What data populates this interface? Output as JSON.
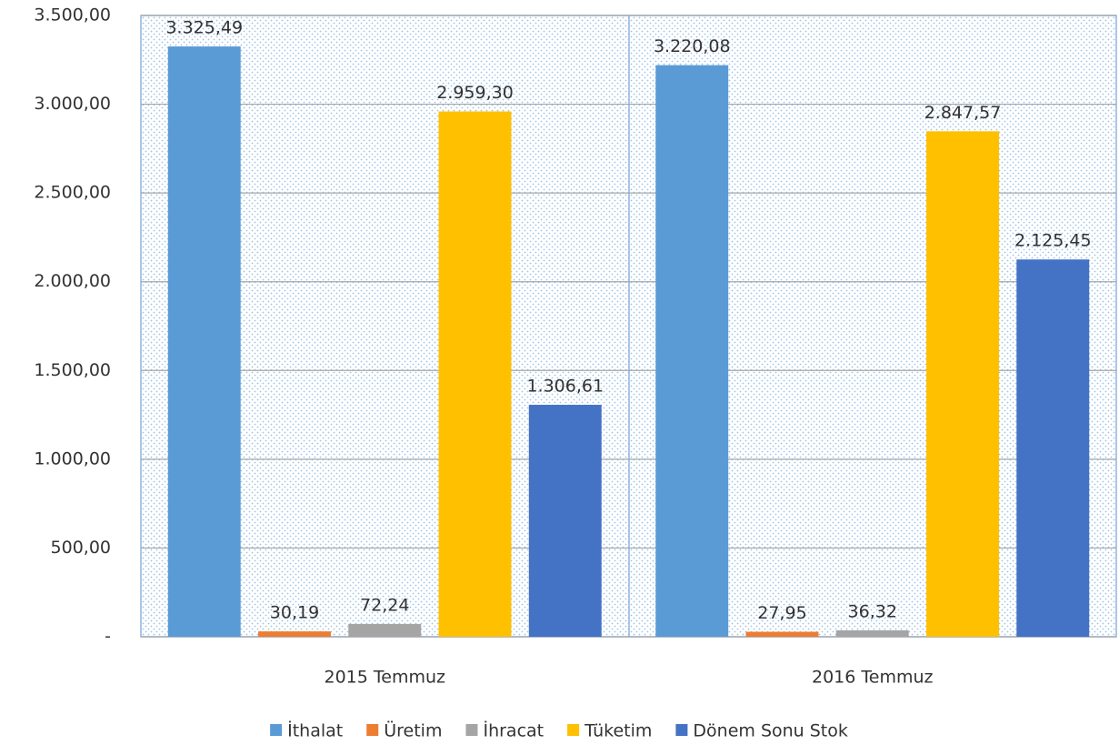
{
  "chart_data": {
    "type": "bar",
    "categories": [
      "2015 Temmuz",
      "2016 Temmuz"
    ],
    "series": [
      {
        "name": "İthalat",
        "color": "#5B9BD5",
        "values": [
          3325.49,
          3220.08
        ],
        "value_labels": [
          "3.325,49",
          "3.220,08"
        ]
      },
      {
        "name": "Üretim",
        "color": "#ED7D31",
        "values": [
          30.19,
          27.95
        ],
        "value_labels": [
          "30,19",
          "27,95"
        ]
      },
      {
        "name": "İhracat",
        "color": "#A5A5A5",
        "values": [
          72.24,
          36.32
        ],
        "value_labels": [
          "72,24",
          "36,32"
        ]
      },
      {
        "name": "Tüketim",
        "color": "#FFC000",
        "values": [
          2959.3,
          2847.57
        ],
        "value_labels": [
          "2.959,30",
          "2.847,57"
        ]
      },
      {
        "name": "Dönem Sonu Stok",
        "color": "#4472C4",
        "values": [
          1306.61,
          2125.45
        ],
        "value_labels": [
          "1.306,61",
          "2.125,45"
        ]
      }
    ],
    "ylim": [
      0,
      3500
    ],
    "yticks": [
      {
        "value": 0,
        "label": "-"
      },
      {
        "value": 500,
        "label": "500,00"
      },
      {
        "value": 1000,
        "label": "1.000,00"
      },
      {
        "value": 1500,
        "label": "1.500,00"
      },
      {
        "value": 2000,
        "label": "2.000,00"
      },
      {
        "value": 2500,
        "label": "2.500,00"
      },
      {
        "value": 3000,
        "label": "3.000,00"
      },
      {
        "value": 3500,
        "label": "3.500,00"
      }
    ],
    "grid": true,
    "legend": "bottom"
  }
}
